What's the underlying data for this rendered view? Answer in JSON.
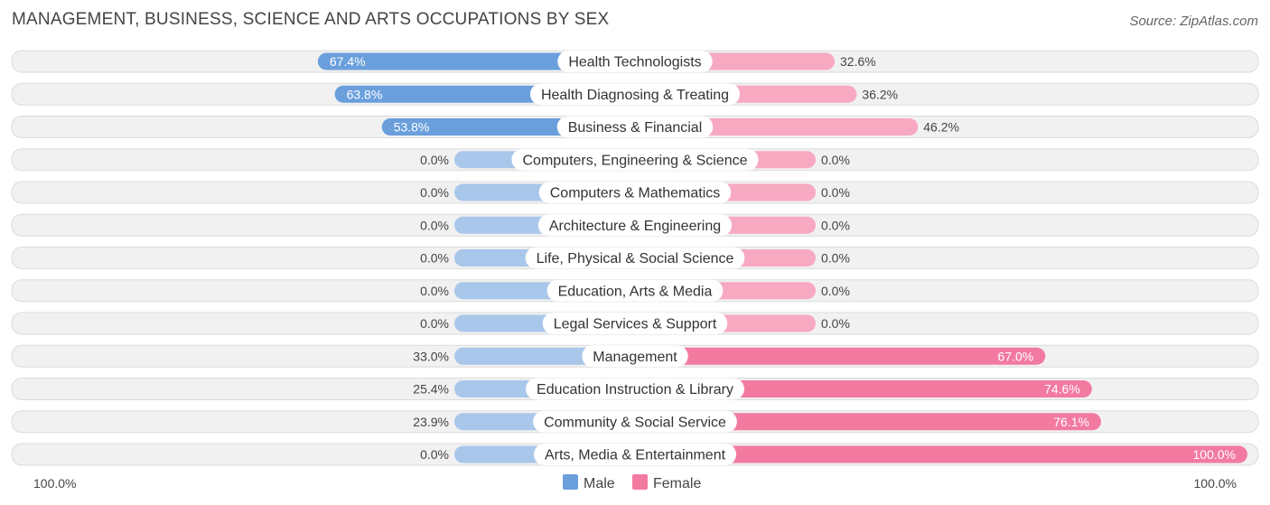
{
  "title": "MANAGEMENT, BUSINESS, SCIENCE AND ARTS OCCUPATIONS BY SEX",
  "source": "Source: ZipAtlas.com",
  "colors": {
    "male_strong": "#6a9fdc",
    "male_light": "#a9c7ea",
    "female_strong": "#f27aa0",
    "female_light": "#f7a9c2"
  },
  "chart_data": {
    "type": "bar",
    "orientation": "horizontal-diverging",
    "categories": [
      "Health Technologists",
      "Health Diagnosing & Treating",
      "Business & Financial",
      "Computers, Engineering & Science",
      "Computers & Mathematics",
      "Architecture & Engineering",
      "Life, Physical & Social Science",
      "Education, Arts & Media",
      "Legal Services & Support",
      "Management",
      "Education Instruction & Library",
      "Community & Social Service",
      "Arts, Media & Entertainment"
    ],
    "series": [
      {
        "name": "Male",
        "values": [
          67.4,
          63.8,
          53.8,
          0.0,
          0.0,
          0.0,
          0.0,
          0.0,
          0.0,
          33.0,
          25.4,
          23.9,
          0.0
        ],
        "labels": [
          "67.4%",
          "63.8%",
          "53.8%",
          "0.0%",
          "0.0%",
          "0.0%",
          "0.0%",
          "0.0%",
          "0.0%",
          "33.0%",
          "25.4%",
          "23.9%",
          "0.0%"
        ]
      },
      {
        "name": "Female",
        "values": [
          32.6,
          36.2,
          46.2,
          0.0,
          0.0,
          0.0,
          0.0,
          0.0,
          0.0,
          67.0,
          74.6,
          76.1,
          100.0
        ],
        "labels": [
          "32.6%",
          "36.2%",
          "46.2%",
          "0.0%",
          "0.0%",
          "0.0%",
          "0.0%",
          "0.0%",
          "0.0%",
          "67.0%",
          "74.6%",
          "76.1%",
          "100.0%"
        ]
      }
    ],
    "xlim": [
      -100,
      100
    ],
    "axis_left_label": "100.0%",
    "axis_right_label": "100.0%",
    "legend": [
      "Male",
      "Female"
    ],
    "legend_position": "bottom-center"
  }
}
